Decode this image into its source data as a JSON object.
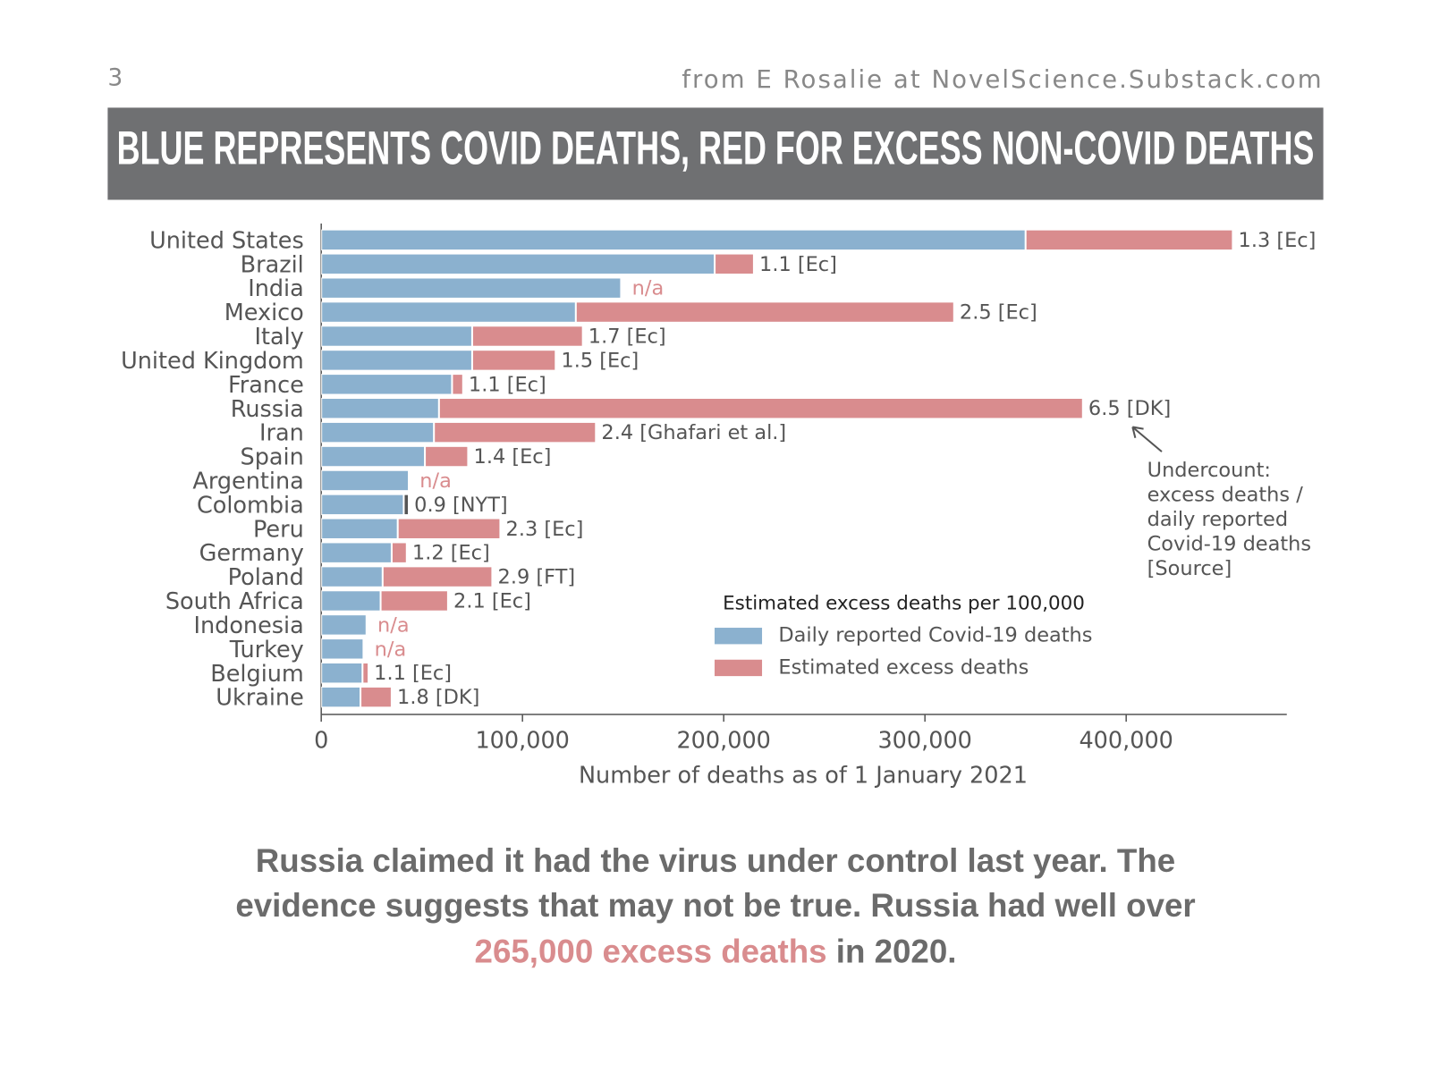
{
  "page_number": "3",
  "source": "from E Rosalie at NovelScience.Substack.com",
  "banner": "BLUE REPRESENTS COVID DEATHS, RED FOR EXCESS NON-COVID DEATHS",
  "chart_data": {
    "type": "stacked-barh",
    "categories": [
      "United States",
      "Brazil",
      "India",
      "Mexico",
      "Italy",
      "United Kingdom",
      "France",
      "Russia",
      "Iran",
      "Spain",
      "Argentina",
      "Colombia",
      "Peru",
      "Germany",
      "Poland",
      "South Africa",
      "Indonesia",
      "Turkey",
      "Belgium",
      "Ukraine"
    ],
    "series": [
      {
        "name": "Daily reported Covid-19 deaths",
        "color": "#8bb1cf",
        "values": [
          350000,
          195500,
          149000,
          126500,
          75000,
          75000,
          65000,
          58500,
          56000,
          51500,
          43500,
          41000,
          38000,
          35000,
          30500,
          29500,
          22500,
          21000,
          20500,
          19500
        ]
      },
      {
        "name": "Estimated excess deaths",
        "color": "#d98c8e",
        "values": [
          103000,
          19500,
          null,
          188000,
          55000,
          41500,
          5500,
          320000,
          80500,
          21500,
          null,
          2500,
          51000,
          7500,
          54500,
          33500,
          null,
          null,
          3000,
          15500
        ],
        "point_colors": {
          "11": "#555555"
        }
      }
    ],
    "bar_labels": [
      "1.3 [Ec]",
      "1.1 [Ec]",
      "n/a",
      "2.5 [Ec]",
      "1.7 [Ec]",
      "1.5 [Ec]",
      "1.1 [Ec]",
      "6.5 [DK]",
      "2.4 [Ghafari et al.]",
      "1.4 [Ec]",
      "n/a",
      "0.9 [NYT]",
      "2.3 [Ec]",
      "1.2 [Ec]",
      "2.9 [FT]",
      "2.1 [Ec]",
      "n/a",
      "n/a",
      "1.1 [Ec]",
      "1.8 [DK]"
    ],
    "xlabel": "Number of deaths as of 1 January 2021",
    "xlim": [
      0,
      480000
    ],
    "xticks": [
      0,
      {
        "value": 100000,
        "label": "100,000"
      },
      {
        "value": 200000,
        "label": "200,000"
      },
      {
        "value": 300000,
        "label": "300,000"
      },
      {
        "value": 400000,
        "label": "400,000"
      }
    ],
    "legend_title": "Estimated excess deaths per 100,000",
    "note": [
      "Undercount:",
      "excess deaths /",
      "daily reported",
      "Covid-19 deaths",
      "[Source]"
    ]
  },
  "caption": {
    "line1": "Russia claimed it had the virus under control last year. The",
    "line2": "evidence suggests that may not be true. Russia had well over",
    "highlight": "265,000 excess deaths",
    "line3_end": " in 2020."
  }
}
